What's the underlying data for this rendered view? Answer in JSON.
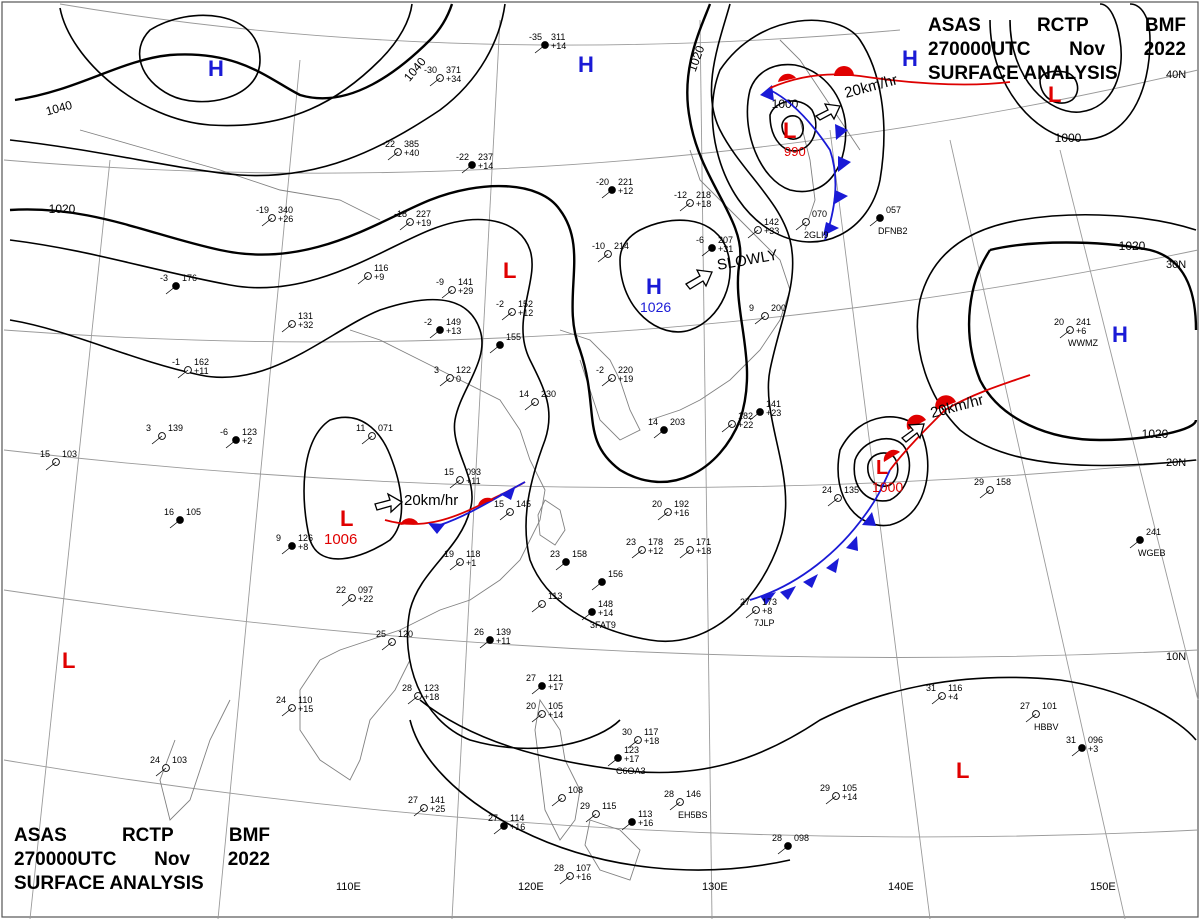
{
  "header": {
    "line1": [
      "ASAS",
      "RCTP",
      "BMF"
    ],
    "line2": [
      "270000UTC",
      "Nov",
      "2022"
    ],
    "line3": "SURFACE ANALYSIS"
  },
  "grid": {
    "lon_labels": [
      "110E",
      "120E",
      "130E",
      "140E",
      "150E"
    ],
    "lat_labels": [
      "40N",
      "30N",
      "20N",
      "10N"
    ]
  },
  "isobars": {
    "labels": [
      "1040",
      "1040",
      "1020",
      "1020",
      "1020",
      "1020",
      "1000",
      "1000"
    ]
  },
  "pressure_centers": [
    {
      "type": "H",
      "value": "",
      "color": "#1a1ad6"
    },
    {
      "type": "H",
      "value": "",
      "color": "#1a1ad6"
    },
    {
      "type": "H",
      "value": "",
      "color": "#1a1ad6"
    },
    {
      "type": "H",
      "value": "1026",
      "color": "#1a1ad6"
    },
    {
      "type": "H",
      "value": "",
      "color": "#1a1ad6"
    },
    {
      "type": "L",
      "value": "990",
      "color": "#e00000"
    },
    {
      "type": "L",
      "value": "",
      "color": "#e00000"
    },
    {
      "type": "L",
      "value": "",
      "color": "#e00000"
    },
    {
      "type": "L",
      "value": "1006",
      "color": "#e00000"
    },
    {
      "type": "L",
      "value": "1000",
      "color": "#e00000"
    },
    {
      "type": "L",
      "value": "",
      "color": "#e00000"
    },
    {
      "type": "L",
      "value": "",
      "color": "#e00000"
    }
  ],
  "movements": [
    "20km/hr",
    "SLOWLY",
    "20km/hr",
    "20km/hr"
  ],
  "stations": [
    {
      "t": "-35",
      "p": "311",
      "d": "+14",
      "id": ""
    },
    {
      "t": "-30",
      "p": "371",
      "d": "+34",
      "id": ""
    },
    {
      "t": "-22",
      "p": "385",
      "d": "+40",
      "id": ""
    },
    {
      "t": "-22",
      "p": "237",
      "d": "+14",
      "id": ""
    },
    {
      "t": "-19",
      "p": "340",
      "d": "+26",
      "id": ""
    },
    {
      "t": "-18",
      "p": "227",
      "d": "+19",
      "id": ""
    },
    {
      "t": "-20",
      "p": "221",
      "d": "+12",
      "id": ""
    },
    {
      "t": "-12",
      "p": "218",
      "d": "+18",
      "id": ""
    },
    {
      "t": "-9",
      "p": "141",
      "d": "+29",
      "id": ""
    },
    {
      "t": "-2",
      "p": "149",
      "d": "+13",
      "id": ""
    },
    {
      "t": "-2",
      "p": "152",
      "d": "+12",
      "id": ""
    },
    {
      "t": "-10",
      "p": "214",
      "d": "",
      "id": ""
    },
    {
      "t": "-6",
      "p": "207",
      "d": "+31",
      "id": ""
    },
    {
      "t": "",
      "p": "116",
      "d": "+9",
      "id": ""
    },
    {
      "t": "",
      "p": "131",
      "d": "+32",
      "id": ""
    },
    {
      "t": "-3",
      "p": "176",
      "d": "",
      "id": ""
    },
    {
      "t": "-1",
      "p": "162",
      "d": "+11",
      "id": ""
    },
    {
      "t": "3",
      "p": "122",
      "d": "0",
      "id": ""
    },
    {
      "t": "",
      "p": "155",
      "d": "",
      "id": ""
    },
    {
      "t": "-2",
      "p": "220",
      "d": "+19",
      "id": ""
    },
    {
      "t": "14",
      "p": "230",
      "d": "",
      "id": ""
    },
    {
      "t": "14",
      "p": "203",
      "d": "",
      "id": ""
    },
    {
      "t": "9",
      "p": "200",
      "d": "",
      "id": ""
    },
    {
      "t": "",
      "p": "182",
      "d": "+22",
      "id": ""
    },
    {
      "t": "",
      "p": "141",
      "d": "+23",
      "id": ""
    },
    {
      "t": "",
      "p": "142",
      "d": "+33",
      "id": ""
    },
    {
      "t": "",
      "p": "070",
      "d": "",
      "id": "2GLI9"
    },
    {
      "t": "",
      "p": "057",
      "d": "",
      "id": "DFNB2"
    },
    {
      "t": "20",
      "p": "241",
      "d": "+6",
      "id": "WWMZ"
    },
    {
      "t": "3",
      "p": "139",
      "d": "",
      "id": ""
    },
    {
      "t": "-6",
      "p": "123",
      "d": "+2",
      "id": ""
    },
    {
      "t": "11",
      "p": "071",
      "d": "",
      "id": ""
    },
    {
      "t": "15",
      "p": "103",
      "d": "",
      "id": ""
    },
    {
      "t": "16",
      "p": "105",
      "d": "",
      "id": ""
    },
    {
      "t": "15",
      "p": "093",
      "d": "+11",
      "id": ""
    },
    {
      "t": "15",
      "p": "145",
      "d": "",
      "id": ""
    },
    {
      "t": "9",
      "p": "126",
      "d": "+8",
      "id": ""
    },
    {
      "t": "19",
      "p": "118",
      "d": "+1",
      "id": ""
    },
    {
      "t": "20",
      "p": "192",
      "d": "+16",
      "id": ""
    },
    {
      "t": "23",
      "p": "158",
      "d": "",
      "id": ""
    },
    {
      "t": "23",
      "p": "178",
      "d": "+12",
      "id": ""
    },
    {
      "t": "25",
      "p": "171",
      "d": "+18",
      "id": ""
    },
    {
      "t": "",
      "p": "156",
      "d": "",
      "id": ""
    },
    {
      "t": "24",
      "p": "135",
      "d": "",
      "id": ""
    },
    {
      "t": "29",
      "p": "158",
      "d": "",
      "id": ""
    },
    {
      "t": "",
      "p": "241",
      "d": "",
      "id": "WGEB"
    },
    {
      "t": "22",
      "p": "097",
      "d": "+22",
      "id": ""
    },
    {
      "t": "",
      "p": "113",
      "d": "",
      "id": ""
    },
    {
      "t": "",
      "p": "148",
      "d": "+14",
      "id": "3FAT9"
    },
    {
      "t": "27",
      "p": "173",
      "d": "+8",
      "id": "7JLP"
    },
    {
      "t": "25",
      "p": "120",
      "d": "",
      "id": ""
    },
    {
      "t": "26",
      "p": "139",
      "d": "+11",
      "id": ""
    },
    {
      "t": "28",
      "p": "123",
      "d": "+18",
      "id": ""
    },
    {
      "t": "24",
      "p": "110",
      "d": "+15",
      "id": ""
    },
    {
      "t": "27",
      "p": "121",
      "d": "+17",
      "id": ""
    },
    {
      "t": "20",
      "p": "105",
      "d": "+14",
      "id": ""
    },
    {
      "t": "30",
      "p": "117",
      "d": "+18",
      "id": ""
    },
    {
      "t": "",
      "p": "123",
      "d": "+17",
      "id": "C6OA3"
    },
    {
      "t": "31",
      "p": "116",
      "d": "+4",
      "id": ""
    },
    {
      "t": "27",
      "p": "101",
      "d": "",
      "id": "HBBV"
    },
    {
      "t": "31",
      "p": "096",
      "d": "+3",
      "id": ""
    },
    {
      "t": "24",
      "p": "103",
      "d": "",
      "id": ""
    },
    {
      "t": "27",
      "p": "141",
      "d": "+25",
      "id": ""
    },
    {
      "t": "27",
      "p": "114",
      "d": "+16",
      "id": ""
    },
    {
      "t": "",
      "p": "108",
      "d": "",
      "id": ""
    },
    {
      "t": "29",
      "p": "115",
      "d": "",
      "id": ""
    },
    {
      "t": "",
      "p": "113",
      "d": "+16",
      "id": ""
    },
    {
      "t": "28",
      "p": "146",
      "d": "",
      "id": "EH5BS"
    },
    {
      "t": "29",
      "p": "105",
      "d": "+14",
      "id": ""
    },
    {
      "t": "28",
      "p": "098",
      "d": "",
      "id": ""
    },
    {
      "t": "28",
      "p": "107",
      "d": "+16",
      "id": ""
    }
  ]
}
